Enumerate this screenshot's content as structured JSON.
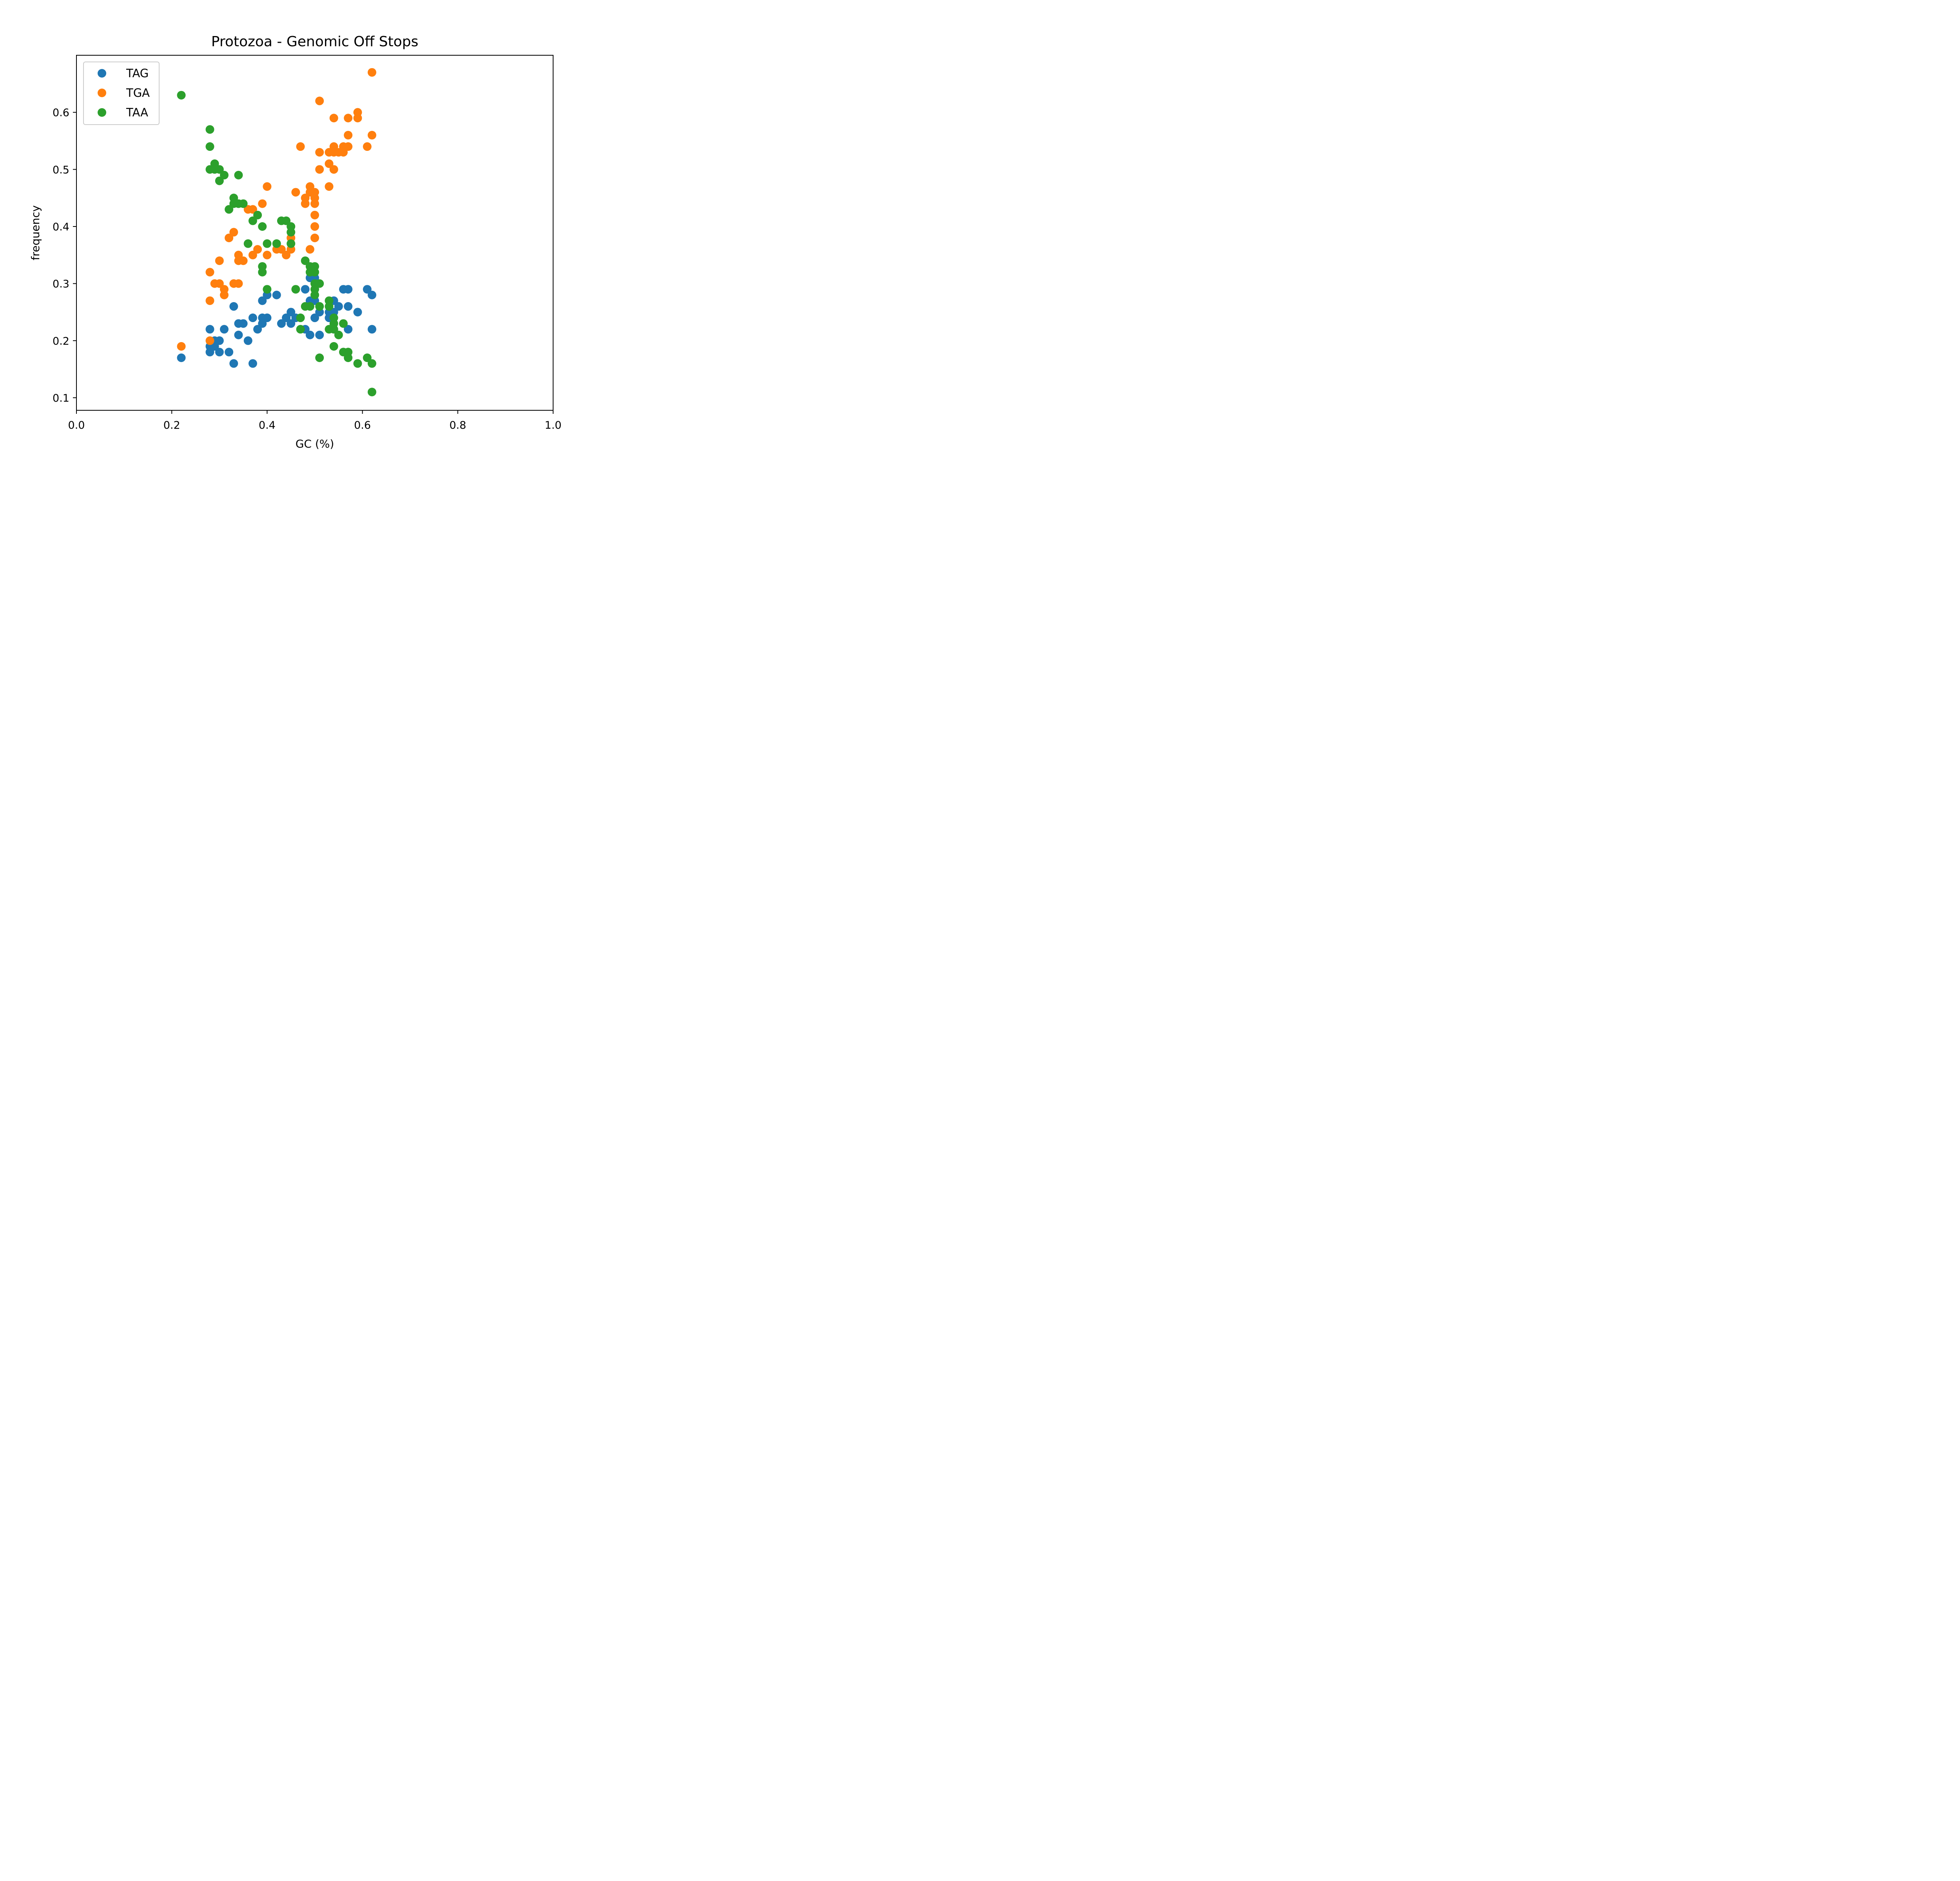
{
  "chart_data": {
    "type": "scatter",
    "title": "Protozoa - Genomic Off Stops",
    "xlabel": "GC (%)",
    "ylabel": "frequency",
    "xlim": [
      0.0,
      1.0
    ],
    "ylim": [
      0.078,
      0.7
    ],
    "xticks": [
      0.0,
      0.2,
      0.4,
      0.6,
      0.8,
      1.0
    ],
    "xtick_labels": [
      "0.0",
      "0.2",
      "0.4",
      "0.6",
      "0.8",
      "1.0"
    ],
    "yticks": [
      0.1,
      0.2,
      0.3,
      0.4,
      0.5,
      0.6
    ],
    "ytick_labels": [
      "0.1",
      "0.2",
      "0.3",
      "0.4",
      "0.5",
      "0.6"
    ],
    "grid": false,
    "legend": "upper-left",
    "series": [
      {
        "name": "TAG",
        "color": "#1f77b4",
        "points": [
          [
            0.22,
            0.17
          ],
          [
            0.28,
            0.22
          ],
          [
            0.28,
            0.19
          ],
          [
            0.28,
            0.18
          ],
          [
            0.29,
            0.2
          ],
          [
            0.29,
            0.19
          ],
          [
            0.3,
            0.2
          ],
          [
            0.3,
            0.18
          ],
          [
            0.31,
            0.22
          ],
          [
            0.32,
            0.18
          ],
          [
            0.33,
            0.26
          ],
          [
            0.33,
            0.16
          ],
          [
            0.34,
            0.23
          ],
          [
            0.34,
            0.21
          ],
          [
            0.35,
            0.23
          ],
          [
            0.36,
            0.2
          ],
          [
            0.37,
            0.24
          ],
          [
            0.37,
            0.16
          ],
          [
            0.38,
            0.22
          ],
          [
            0.39,
            0.27
          ],
          [
            0.39,
            0.24
          ],
          [
            0.39,
            0.23
          ],
          [
            0.4,
            0.28
          ],
          [
            0.4,
            0.24
          ],
          [
            0.42,
            0.28
          ],
          [
            0.43,
            0.23
          ],
          [
            0.44,
            0.24
          ],
          [
            0.45,
            0.25
          ],
          [
            0.45,
            0.23
          ],
          [
            0.46,
            0.24
          ],
          [
            0.48,
            0.29
          ],
          [
            0.48,
            0.22
          ],
          [
            0.49,
            0.31
          ],
          [
            0.49,
            0.27
          ],
          [
            0.49,
            0.21
          ],
          [
            0.5,
            0.31
          ],
          [
            0.5,
            0.27
          ],
          [
            0.5,
            0.24
          ],
          [
            0.51,
            0.25
          ],
          [
            0.51,
            0.21
          ],
          [
            0.53,
            0.25
          ],
          [
            0.53,
            0.24
          ],
          [
            0.54,
            0.27
          ],
          [
            0.54,
            0.25
          ],
          [
            0.54,
            0.22
          ],
          [
            0.55,
            0.26
          ],
          [
            0.56,
            0.29
          ],
          [
            0.57,
            0.29
          ],
          [
            0.57,
            0.26
          ],
          [
            0.57,
            0.22
          ],
          [
            0.59,
            0.25
          ],
          [
            0.61,
            0.29
          ],
          [
            0.62,
            0.28
          ],
          [
            0.62,
            0.22
          ]
        ]
      },
      {
        "name": "TGA",
        "color": "#ff7f0e",
        "points": [
          [
            0.22,
            0.19
          ],
          [
            0.28,
            0.32
          ],
          [
            0.28,
            0.27
          ],
          [
            0.28,
            0.2
          ],
          [
            0.29,
            0.3
          ],
          [
            0.3,
            0.34
          ],
          [
            0.3,
            0.3
          ],
          [
            0.31,
            0.29
          ],
          [
            0.31,
            0.28
          ],
          [
            0.32,
            0.38
          ],
          [
            0.33,
            0.39
          ],
          [
            0.33,
            0.3
          ],
          [
            0.34,
            0.35
          ],
          [
            0.34,
            0.34
          ],
          [
            0.34,
            0.3
          ],
          [
            0.35,
            0.34
          ],
          [
            0.36,
            0.43
          ],
          [
            0.37,
            0.43
          ],
          [
            0.37,
            0.35
          ],
          [
            0.38,
            0.36
          ],
          [
            0.39,
            0.44
          ],
          [
            0.4,
            0.47
          ],
          [
            0.4,
            0.35
          ],
          [
            0.42,
            0.36
          ],
          [
            0.43,
            0.36
          ],
          [
            0.44,
            0.35
          ],
          [
            0.45,
            0.38
          ],
          [
            0.45,
            0.36
          ],
          [
            0.46,
            0.46
          ],
          [
            0.47,
            0.54
          ],
          [
            0.48,
            0.45
          ],
          [
            0.48,
            0.44
          ],
          [
            0.49,
            0.47
          ],
          [
            0.49,
            0.46
          ],
          [
            0.49,
            0.36
          ],
          [
            0.5,
            0.46
          ],
          [
            0.5,
            0.45
          ],
          [
            0.5,
            0.44
          ],
          [
            0.5,
            0.42
          ],
          [
            0.5,
            0.4
          ],
          [
            0.5,
            0.38
          ],
          [
            0.51,
            0.62
          ],
          [
            0.51,
            0.53
          ],
          [
            0.51,
            0.5
          ],
          [
            0.53,
            0.53
          ],
          [
            0.53,
            0.51
          ],
          [
            0.53,
            0.47
          ],
          [
            0.54,
            0.59
          ],
          [
            0.54,
            0.54
          ],
          [
            0.54,
            0.53
          ],
          [
            0.54,
            0.5
          ],
          [
            0.55,
            0.53
          ],
          [
            0.56,
            0.54
          ],
          [
            0.56,
            0.53
          ],
          [
            0.57,
            0.59
          ],
          [
            0.57,
            0.56
          ],
          [
            0.57,
            0.54
          ],
          [
            0.59,
            0.6
          ],
          [
            0.59,
            0.59
          ],
          [
            0.61,
            0.54
          ],
          [
            0.62,
            0.67
          ],
          [
            0.62,
            0.56
          ]
        ]
      },
      {
        "name": "TAA",
        "color": "#2ca02c",
        "points": [
          [
            0.22,
            0.63
          ],
          [
            0.28,
            0.57
          ],
          [
            0.28,
            0.54
          ],
          [
            0.28,
            0.5
          ],
          [
            0.29,
            0.51
          ],
          [
            0.29,
            0.5
          ],
          [
            0.3,
            0.5
          ],
          [
            0.3,
            0.48
          ],
          [
            0.31,
            0.49
          ],
          [
            0.32,
            0.43
          ],
          [
            0.33,
            0.45
          ],
          [
            0.33,
            0.44
          ],
          [
            0.34,
            0.49
          ],
          [
            0.34,
            0.44
          ],
          [
            0.35,
            0.44
          ],
          [
            0.36,
            0.37
          ],
          [
            0.37,
            0.41
          ],
          [
            0.38,
            0.42
          ],
          [
            0.39,
            0.4
          ],
          [
            0.39,
            0.33
          ],
          [
            0.39,
            0.32
          ],
          [
            0.4,
            0.37
          ],
          [
            0.4,
            0.29
          ],
          [
            0.42,
            0.37
          ],
          [
            0.43,
            0.41
          ],
          [
            0.44,
            0.41
          ],
          [
            0.45,
            0.4
          ],
          [
            0.45,
            0.39
          ],
          [
            0.45,
            0.37
          ],
          [
            0.46,
            0.29
          ],
          [
            0.47,
            0.24
          ],
          [
            0.47,
            0.22
          ],
          [
            0.48,
            0.34
          ],
          [
            0.48,
            0.26
          ],
          [
            0.49,
            0.33
          ],
          [
            0.49,
            0.32
          ],
          [
            0.49,
            0.26
          ],
          [
            0.5,
            0.33
          ],
          [
            0.5,
            0.32
          ],
          [
            0.5,
            0.3
          ],
          [
            0.5,
            0.29
          ],
          [
            0.5,
            0.28
          ],
          [
            0.51,
            0.3
          ],
          [
            0.51,
            0.26
          ],
          [
            0.51,
            0.17
          ],
          [
            0.53,
            0.27
          ],
          [
            0.53,
            0.26
          ],
          [
            0.53,
            0.22
          ],
          [
            0.54,
            0.24
          ],
          [
            0.54,
            0.23
          ],
          [
            0.54,
            0.22
          ],
          [
            0.54,
            0.19
          ],
          [
            0.55,
            0.21
          ],
          [
            0.56,
            0.23
          ],
          [
            0.56,
            0.18
          ],
          [
            0.57,
            0.18
          ],
          [
            0.57,
            0.17
          ],
          [
            0.59,
            0.16
          ],
          [
            0.61,
            0.17
          ],
          [
            0.62,
            0.16
          ],
          [
            0.62,
            0.11
          ]
        ]
      }
    ]
  }
}
